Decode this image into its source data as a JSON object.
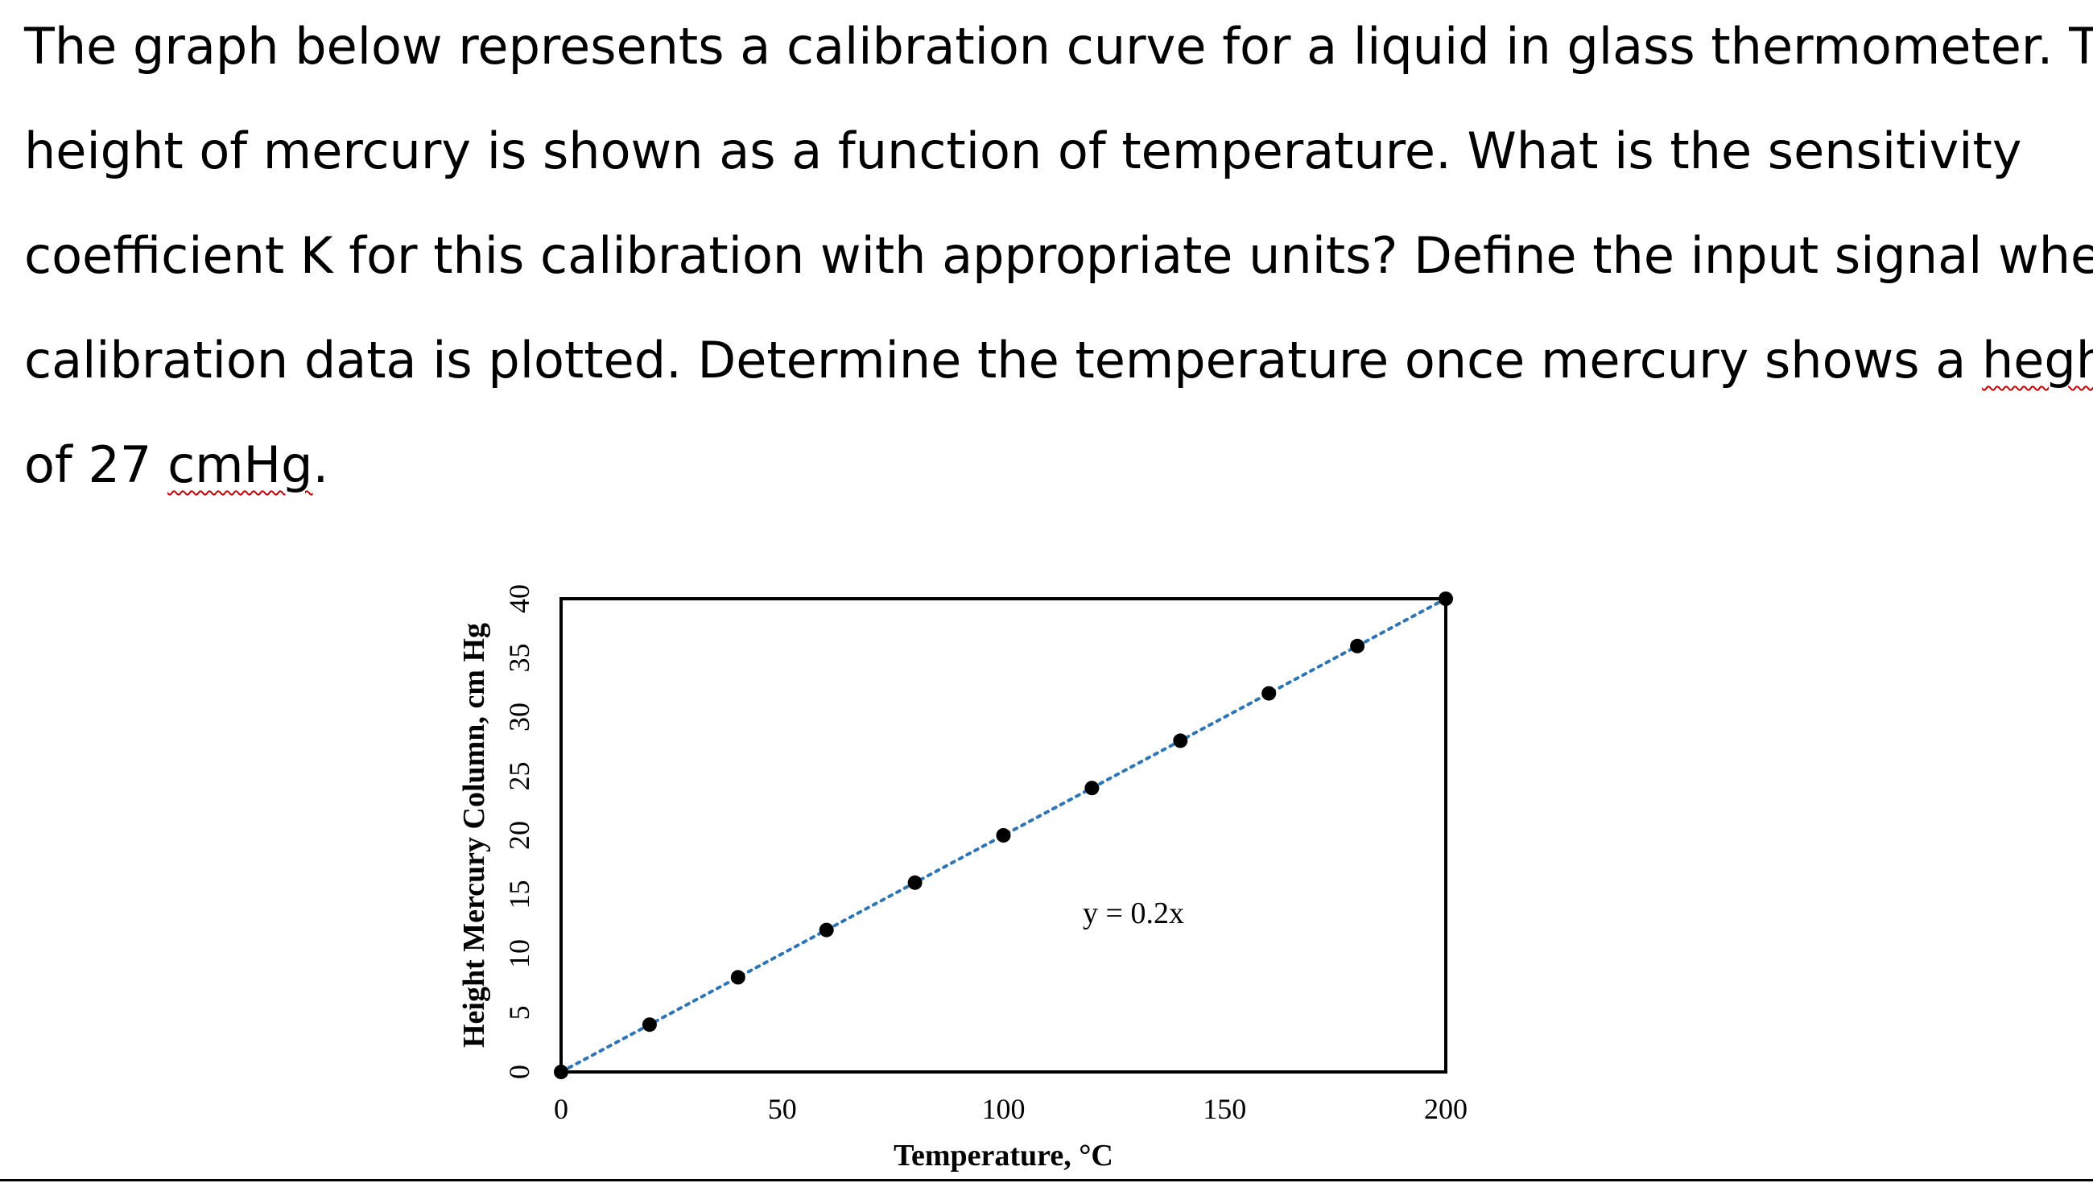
{
  "question": {
    "lines": [
      [
        {
          "text": "The graph below represents a calibration curve for a liquid in glass thermometer. The"
        }
      ],
      [
        {
          "text": "height of mercury is shown as a function of temperature. What is the sensitivity"
        }
      ],
      [
        {
          "text": "coefficient K for this calibration with appropriate units? Define the input signal when"
        }
      ],
      [
        {
          "text": "calibration data is plotted. Determine the temperature once mercury shows a "
        },
        {
          "text": "heghit",
          "spell": true
        }
      ],
      [
        {
          "text": "of 27 "
        },
        {
          "text": "cmHg",
          "spell": true
        },
        {
          "text": "."
        }
      ]
    ]
  },
  "chart_data": {
    "type": "scatter",
    "xlabel": "Temperature, °C",
    "ylabel": "Height Mercury Column, cm Hg",
    "xlim": [
      0,
      200
    ],
    "ylim": [
      0,
      40
    ],
    "xticks": [
      0,
      50,
      100,
      150,
      200
    ],
    "yticks": [
      0,
      5,
      10,
      15,
      20,
      25,
      30,
      35,
      40
    ],
    "grid": false,
    "series": [
      {
        "x": [
          0,
          20,
          40,
          60,
          80,
          100,
          120,
          140,
          160,
          180,
          200
        ],
        "y": [
          0,
          4,
          8,
          12,
          16,
          20,
          24,
          28,
          32,
          36,
          40
        ],
        "marker_color": "#000000"
      }
    ],
    "trendline": {
      "style": "dotted",
      "color": "#2e75b6",
      "slope": 0.2,
      "intercept": 0,
      "equation": "y = 0.2x"
    }
  }
}
